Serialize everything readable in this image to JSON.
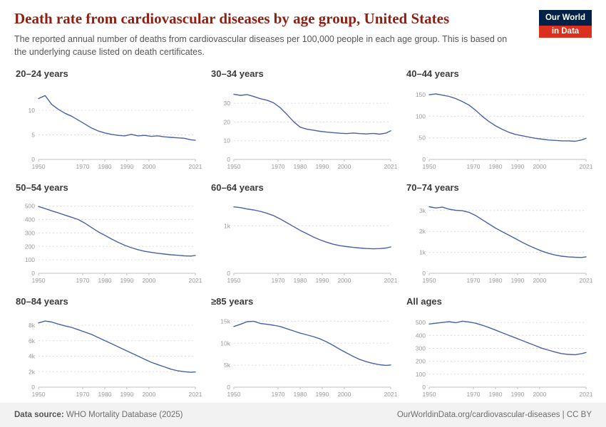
{
  "header": {
    "title": "Death rate from cardiovascular diseases by age group, United States",
    "subtitle": "The reported annual number of deaths from cardiovascular diseases per 100,000 people in each age group. This is based on the underlying cause listed on death certificates.",
    "logo": {
      "line1": "Our World",
      "line2": "in Data"
    }
  },
  "footer": {
    "datasource_label": "Data source:",
    "datasource_value": " WHO Mortality Database (2025)",
    "right": "OurWorldinData.org/cardiovascular-diseases | CC BY"
  },
  "colors": {
    "title": "#8e1f12",
    "line": "#4762a8",
    "logo-bg": "#002147",
    "logo-red": "#dc2f1e"
  },
  "chart_axis": {
    "x_range": [
      1950,
      2021
    ],
    "x_ticks": [
      1950,
      1970,
      1980,
      1990,
      2000,
      2021
    ],
    "years": [
      1950,
      1953,
      1956,
      1959,
      1962,
      1965,
      1968,
      1971,
      1974,
      1977,
      1980,
      1983,
      1986,
      1989,
      1992,
      1995,
      1998,
      2001,
      2004,
      2007,
      2010,
      2013,
      2016,
      2019,
      2021
    ]
  },
  "chart_data": [
    {
      "type": "line",
      "title": "20–24 years",
      "ylabel": "deaths per 100,000",
      "ymax": 14.5,
      "yticks": [
        0,
        5,
        10
      ],
      "ytick_labels": [
        "0",
        "5",
        "10"
      ],
      "values": [
        12.4,
        13.0,
        11.2,
        10.2,
        9.4,
        8.8,
        8.0,
        7.2,
        6.4,
        5.8,
        5.4,
        5.1,
        4.9,
        4.8,
        5.1,
        4.8,
        4.9,
        4.7,
        4.8,
        4.6,
        4.5,
        4.4,
        4.3,
        4.0,
        3.9
      ]
    },
    {
      "type": "line",
      "title": "30–34 years",
      "ylabel": "deaths per 100,000",
      "ymax": 38,
      "yticks": [
        0,
        10,
        20,
        30
      ],
      "ytick_labels": [
        "0",
        "10",
        "20",
        "30"
      ],
      "values": [
        34.8,
        34.2,
        34.6,
        33.6,
        32.4,
        31.6,
        30.2,
        27.6,
        24.0,
        20.2,
        17.2,
        16.2,
        15.6,
        15.0,
        14.6,
        14.3,
        14.0,
        13.8,
        14.1,
        13.8,
        13.6,
        13.9,
        13.5,
        14.1,
        15.3
      ]
    },
    {
      "type": "line",
      "title": "40–44 years",
      "ylabel": "deaths per 100,000",
      "ymax": 165,
      "yticks": [
        0,
        50,
        100,
        150
      ],
      "ytick_labels": [
        "0",
        "50",
        "100",
        "150"
      ],
      "values": [
        150,
        152,
        149,
        146,
        141,
        134,
        126,
        114,
        100,
        88,
        78,
        70,
        63,
        58,
        55,
        52,
        49,
        47,
        45,
        44,
        43,
        43,
        42,
        45,
        49
      ]
    },
    {
      "type": "line",
      "title": "50–54 years",
      "ylabel": "deaths per 100,000",
      "ymax": 530,
      "yticks": [
        0,
        100,
        200,
        300,
        400,
        500
      ],
      "ytick_labels": [
        "0",
        "100",
        "200",
        "300",
        "400",
        "500"
      ],
      "values": [
        497,
        482,
        465,
        450,
        433,
        417,
        400,
        373,
        341,
        309,
        283,
        256,
        231,
        209,
        191,
        176,
        164,
        156,
        149,
        143,
        138,
        134,
        130,
        128,
        133
      ]
    },
    {
      "type": "line",
      "title": "60–64 years",
      "ylabel": "deaths per 100,000",
      "ymax": 1500,
      "yticks": [
        0,
        1000
      ],
      "ytick_labels": [
        "0",
        "1k"
      ],
      "values": [
        1400,
        1385,
        1355,
        1335,
        1305,
        1265,
        1215,
        1145,
        1065,
        985,
        905,
        835,
        765,
        705,
        655,
        612,
        582,
        562,
        546,
        532,
        522,
        516,
        520,
        532,
        556
      ]
    },
    {
      "type": "line",
      "title": "70–74 years",
      "ylabel": "deaths per 100,000",
      "ymax": 3400,
      "yticks": [
        0,
        1000,
        2000,
        3000
      ],
      "ytick_labels": [
        "0",
        "1k",
        "2k",
        "3k"
      ],
      "values": [
        3180,
        3120,
        3160,
        3060,
        3010,
        2990,
        2910,
        2760,
        2560,
        2360,
        2160,
        1990,
        1830,
        1660,
        1490,
        1330,
        1190,
        1060,
        955,
        875,
        815,
        785,
        765,
        755,
        785
      ]
    },
    {
      "type": "line",
      "title": "80–84 years",
      "ylabel": "deaths per 100,000",
      "ymax": 9200,
      "yticks": [
        0,
        2000,
        4000,
        6000,
        8000
      ],
      "ytick_labels": [
        "0",
        "2k",
        "4k",
        "6k",
        "8k"
      ],
      "values": [
        8300,
        8550,
        8420,
        8150,
        7920,
        7720,
        7420,
        7120,
        6820,
        6420,
        6020,
        5620,
        5220,
        4820,
        4420,
        4020,
        3620,
        3220,
        2920,
        2620,
        2320,
        2120,
        2000,
        1920,
        1960
      ]
    },
    {
      "type": "line",
      "title": "≥85 years",
      "ylabel": "deaths per 100,000",
      "ymax": 16200,
      "yticks": [
        0,
        5000,
        10000,
        15000
      ],
      "ytick_labels": [
        "0",
        "5k",
        "10k",
        "15k"
      ],
      "values": [
        13800,
        14300,
        14900,
        15000,
        14500,
        14300,
        14100,
        13800,
        13300,
        12800,
        12300,
        11900,
        11500,
        11000,
        10300,
        9500,
        8600,
        7800,
        7000,
        6300,
        5800,
        5400,
        5100,
        4950,
        5050
      ]
    },
    {
      "type": "line",
      "title": "All ages",
      "ylabel": "deaths per 100,000",
      "ymax": 550,
      "yticks": [
        0,
        100,
        200,
        300,
        400,
        500
      ],
      "ytick_labels": [
        "0",
        "100",
        "200",
        "300",
        "400",
        "500"
      ],
      "values": [
        488,
        494,
        500,
        506,
        498,
        510,
        504,
        494,
        479,
        461,
        441,
        421,
        401,
        381,
        361,
        341,
        321,
        301,
        286,
        271,
        259,
        253,
        251,
        259,
        268
      ]
    }
  ]
}
